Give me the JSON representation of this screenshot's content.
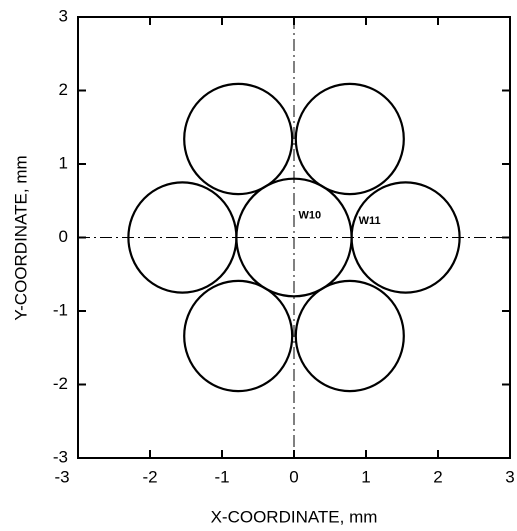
{
  "chart_data": {
    "type": "circle",
    "xlabel": "X-COORDINATE, mm",
    "ylabel": "Y-COORDINATE, mm",
    "xlim": [
      -3,
      3
    ],
    "ylim": [
      -3,
      3
    ],
    "xticks": [
      -3,
      -2,
      -1,
      0,
      1,
      2,
      3
    ],
    "yticks": [
      -3,
      -2,
      -1,
      0,
      1,
      2,
      3
    ],
    "color": "#000000",
    "circles": {
      "x": [
        0,
        1.55,
        0.775,
        -0.775,
        -1.55,
        -0.775,
        0.775
      ],
      "y": [
        0,
        0,
        1.34,
        1.34,
        0,
        -1.34,
        -1.34
      ],
      "r": [
        0.8,
        0.75,
        0.75,
        0.75,
        0.75,
        0.75,
        0.75
      ]
    },
    "annotations": [
      {
        "text": "W10",
        "x": 0.22,
        "y": 0.3
      },
      {
        "text": "W11",
        "x": 1.05,
        "y": 0.22
      }
    ]
  }
}
